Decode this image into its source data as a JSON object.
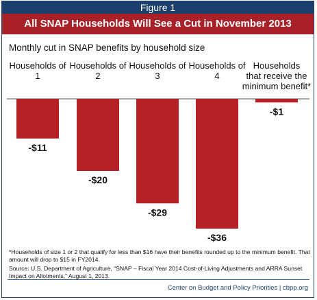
{
  "figure_label": "Figure 1",
  "title": "All SNAP Households Will See a Cut in November 2013",
  "subtitle": "Monthly cut in SNAP benefits by household size",
  "colors": {
    "bar": "#b72126",
    "header_navy": "#1c3f6e",
    "title_red": "#a82128"
  },
  "chart_data": {
    "type": "bar",
    "title": "All SNAP Households Will See a Cut in November 2013",
    "subtitle": "Monthly cut in SNAP benefits by household size",
    "categories": [
      [
        "Households of",
        "1"
      ],
      [
        "Households of",
        "2"
      ],
      [
        "Households of",
        "3"
      ],
      [
        "Households of",
        "4"
      ],
      [
        "Households",
        "that receive the",
        "minimum benefit*"
      ]
    ],
    "values": [
      -11,
      -20,
      -29,
      -36,
      -1
    ],
    "value_labels": [
      "-$11",
      "-$20",
      "-$29",
      "-$36",
      "-$1"
    ],
    "xlabel": "",
    "ylabel": "",
    "ylim": [
      -36,
      0
    ],
    "grid": false,
    "legend": "none"
  },
  "footnotes": {
    "note": "*Households of size 1 or 2 that qualify for less than $16 have their benefits rounded up to the minimum benefit. That amount will drop to $15 in FY2014.",
    "source": "Source: U.S. Department of Agriculture, “SNAP – Fiscal Year 2014 Cost-of-Living Adjustments and ARRA Sunset Impact on Allotments,” August 1, 2013."
  },
  "credit": "Center on Budget and Policy Priorities | cbpp.org"
}
